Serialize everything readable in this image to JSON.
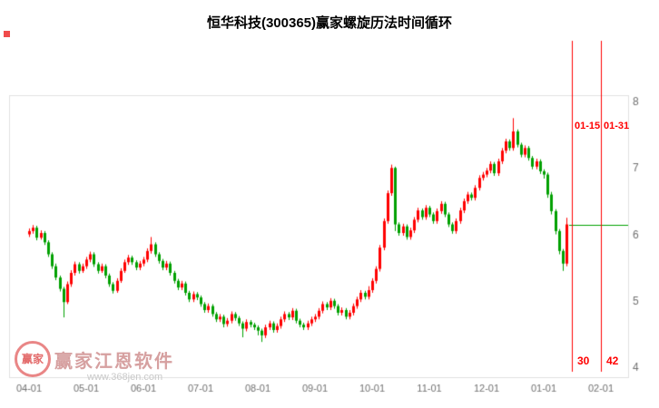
{
  "chart_data": {
    "type": "candlestick",
    "title": "恒华科技(300365)赢家螺旋历法时间循环",
    "x_labels": [
      "04-01",
      "05-01",
      "06-01",
      "07-01",
      "08-01",
      "09-01",
      "10-01",
      "11-01",
      "12-01",
      "01-01",
      "02-01"
    ],
    "ylim": [
      4,
      8
    ],
    "yticks": [
      8,
      7,
      6,
      5,
      4
    ],
    "up_color": "#ff0000",
    "down_color": "#00a000",
    "axis_text_color": "#707070",
    "cycle_line_color": "#ff0000",
    "hline": {
      "value": 6.15,
      "color": "#00a000"
    },
    "cycle_lines": [
      {
        "date": "01-15",
        "number": "30"
      },
      {
        "date": "01-31",
        "number": "42"
      }
    ],
    "candles": [
      [
        6.0,
        6.09,
        5.96,
        6.05
      ],
      [
        6.05,
        6.14,
        6.01,
        6.1
      ],
      [
        6.1,
        6.13,
        5.91,
        5.95
      ],
      [
        5.95,
        6.06,
        5.92,
        6.02
      ],
      [
        6.02,
        6.05,
        5.84,
        5.88
      ],
      [
        5.88,
        5.91,
        5.66,
        5.7
      ],
      [
        5.7,
        5.73,
        5.48,
        5.52
      ],
      [
        5.52,
        5.56,
        5.31,
        5.35
      ],
      [
        5.35,
        5.38,
        5.14,
        5.18
      ],
      [
        5.18,
        5.21,
        4.75,
        4.98
      ],
      [
        4.98,
        5.29,
        4.95,
        5.25
      ],
      [
        5.25,
        5.46,
        5.21,
        5.42
      ],
      [
        5.42,
        5.59,
        5.38,
        5.55
      ],
      [
        5.55,
        5.58,
        5.41,
        5.45
      ],
      [
        5.45,
        5.56,
        5.42,
        5.52
      ],
      [
        5.52,
        5.66,
        5.48,
        5.62
      ],
      [
        5.62,
        5.74,
        5.58,
        5.7
      ],
      [
        5.7,
        5.73,
        5.51,
        5.55
      ],
      [
        5.55,
        5.58,
        5.41,
        5.45
      ],
      [
        5.45,
        5.56,
        5.42,
        5.52
      ],
      [
        5.52,
        5.55,
        5.34,
        5.38
      ],
      [
        5.38,
        5.41,
        5.21,
        5.25
      ],
      [
        5.25,
        5.28,
        5.11,
        5.15
      ],
      [
        5.15,
        5.34,
        5.12,
        5.3
      ],
      [
        5.3,
        5.49,
        5.27,
        5.45
      ],
      [
        5.45,
        5.62,
        5.42,
        5.58
      ],
      [
        5.58,
        5.69,
        5.54,
        5.65
      ],
      [
        5.65,
        5.68,
        5.54,
        5.58
      ],
      [
        5.58,
        5.61,
        5.46,
        5.5
      ],
      [
        5.5,
        5.6,
        5.46,
        5.56
      ],
      [
        5.56,
        5.66,
        5.52,
        5.62
      ],
      [
        5.62,
        5.79,
        5.58,
        5.75
      ],
      [
        5.75,
        5.96,
        5.71,
        5.85
      ],
      [
        5.85,
        5.88,
        5.66,
        5.7
      ],
      [
        5.7,
        5.73,
        5.56,
        5.6
      ],
      [
        5.6,
        5.63,
        5.46,
        5.5
      ],
      [
        5.5,
        5.6,
        5.46,
        5.56
      ],
      [
        5.56,
        5.59,
        5.38,
        5.42
      ],
      [
        5.42,
        5.45,
        5.26,
        5.3
      ],
      [
        5.3,
        5.33,
        5.16,
        5.2
      ],
      [
        5.2,
        5.3,
        5.16,
        5.26
      ],
      [
        5.26,
        5.29,
        5.08,
        5.12
      ],
      [
        5.12,
        5.15,
        4.98,
        5.02
      ],
      [
        5.02,
        5.14,
        4.98,
        5.1
      ],
      [
        5.1,
        5.13,
        5.01,
        5.05
      ],
      [
        5.05,
        5.08,
        4.91,
        4.95
      ],
      [
        4.95,
        4.98,
        4.82,
        4.86
      ],
      [
        4.86,
        4.96,
        4.82,
        4.92
      ],
      [
        4.92,
        4.95,
        4.76,
        4.8
      ],
      [
        4.8,
        4.83,
        4.68,
        4.72
      ],
      [
        4.72,
        4.8,
        4.68,
        4.76
      ],
      [
        4.76,
        4.79,
        4.6,
        4.65
      ],
      [
        4.65,
        4.74,
        4.61,
        4.7
      ],
      [
        4.7,
        4.84,
        4.66,
        4.8
      ],
      [
        4.8,
        4.83,
        4.7,
        4.74
      ],
      [
        4.74,
        4.77,
        4.62,
        4.66
      ],
      [
        4.66,
        4.69,
        4.45,
        4.58
      ],
      [
        4.58,
        4.72,
        4.54,
        4.68
      ],
      [
        4.68,
        4.71,
        4.6,
        4.64
      ],
      [
        4.64,
        4.67,
        4.56,
        4.6
      ],
      [
        4.6,
        4.63,
        4.48,
        4.55
      ],
      [
        4.55,
        4.58,
        4.38,
        4.48
      ],
      [
        4.48,
        4.64,
        4.44,
        4.6
      ],
      [
        4.6,
        4.7,
        4.56,
        4.66
      ],
      [
        4.66,
        4.69,
        4.52,
        4.56
      ],
      [
        4.56,
        4.66,
        4.52,
        4.62
      ],
      [
        4.62,
        4.76,
        4.58,
        4.72
      ],
      [
        4.72,
        4.84,
        4.68,
        4.8
      ],
      [
        4.8,
        4.83,
        4.71,
        4.75
      ],
      [
        4.75,
        4.89,
        4.71,
        4.85
      ],
      [
        4.85,
        4.88,
        4.66,
        4.7
      ],
      [
        4.7,
        4.73,
        4.6,
        4.64
      ],
      [
        4.64,
        4.67,
        4.56,
        4.6
      ],
      [
        4.6,
        4.7,
        4.56,
        4.66
      ],
      [
        4.66,
        4.76,
        4.62,
        4.72
      ],
      [
        4.72,
        4.8,
        4.68,
        4.76
      ],
      [
        4.76,
        4.89,
        4.72,
        4.85
      ],
      [
        4.85,
        4.99,
        4.81,
        4.95
      ],
      [
        4.95,
        4.98,
        4.86,
        4.9
      ],
      [
        4.9,
        5.04,
        4.86,
        5.0
      ],
      [
        5.0,
        5.03,
        4.88,
        4.92
      ],
      [
        4.92,
        4.95,
        4.78,
        4.82
      ],
      [
        4.82,
        4.9,
        4.78,
        4.86
      ],
      [
        4.86,
        4.89,
        4.72,
        4.76
      ],
      [
        4.76,
        4.86,
        4.72,
        4.82
      ],
      [
        4.82,
        4.96,
        4.78,
        4.92
      ],
      [
        4.92,
        5.06,
        4.88,
        5.02
      ],
      [
        5.02,
        5.16,
        4.98,
        5.12
      ],
      [
        5.12,
        5.15,
        5.02,
        5.06
      ],
      [
        5.06,
        5.22,
        5.02,
        5.16
      ],
      [
        5.16,
        5.34,
        5.12,
        5.3
      ],
      [
        5.3,
        5.52,
        5.26,
        5.48
      ],
      [
        5.48,
        5.84,
        5.44,
        5.8
      ],
      [
        5.8,
        6.24,
        5.76,
        6.2
      ],
      [
        6.2,
        6.66,
        6.16,
        6.62
      ],
      [
        6.62,
        7.05,
        6.58,
        7.0
      ],
      [
        7.0,
        7.02,
        6.05,
        6.15
      ],
      [
        6.15,
        6.18,
        5.98,
        6.02
      ],
      [
        6.02,
        6.16,
        5.98,
        6.12
      ],
      [
        6.12,
        6.15,
        5.92,
        5.96
      ],
      [
        5.96,
        6.1,
        5.92,
        6.06
      ],
      [
        6.06,
        6.26,
        6.02,
        6.22
      ],
      [
        6.22,
        6.4,
        6.18,
        6.36
      ],
      [
        6.36,
        6.39,
        6.22,
        6.26
      ],
      [
        6.26,
        6.44,
        6.22,
        6.4
      ],
      [
        6.4,
        6.43,
        6.26,
        6.3
      ],
      [
        6.3,
        6.33,
        6.16,
        6.2
      ],
      [
        6.2,
        6.39,
        6.16,
        6.35
      ],
      [
        6.35,
        6.5,
        6.31,
        6.46
      ],
      [
        6.46,
        6.49,
        6.26,
        6.3
      ],
      [
        6.3,
        6.33,
        6.11,
        6.15
      ],
      [
        6.15,
        6.18,
        6.01,
        6.05
      ],
      [
        6.05,
        6.24,
        6.01,
        6.2
      ],
      [
        6.2,
        6.4,
        6.16,
        6.36
      ],
      [
        6.36,
        6.54,
        6.32,
        6.5
      ],
      [
        6.5,
        6.64,
        6.46,
        6.6
      ],
      [
        6.6,
        6.63,
        6.51,
        6.55
      ],
      [
        6.55,
        6.74,
        6.51,
        6.7
      ],
      [
        6.7,
        6.89,
        6.66,
        6.85
      ],
      [
        6.85,
        6.94,
        6.81,
        6.9
      ],
      [
        6.9,
        7.0,
        6.86,
        6.96
      ],
      [
        6.96,
        7.1,
        6.92,
        7.06
      ],
      [
        7.06,
        7.09,
        6.88,
        6.92
      ],
      [
        6.92,
        7.14,
        6.88,
        7.1
      ],
      [
        7.1,
        7.3,
        7.06,
        7.26
      ],
      [
        7.26,
        7.44,
        7.22,
        7.4
      ],
      [
        7.4,
        7.43,
        7.26,
        7.3
      ],
      [
        7.3,
        7.75,
        7.26,
        7.55
      ],
      [
        7.55,
        7.58,
        7.31,
        7.35
      ],
      [
        7.35,
        7.38,
        7.16,
        7.2
      ],
      [
        7.2,
        7.34,
        7.16,
        7.3
      ],
      [
        7.3,
        7.33,
        7.11,
        7.15
      ],
      [
        7.15,
        7.18,
        6.98,
        7.02
      ],
      [
        7.02,
        7.14,
        6.98,
        7.1
      ],
      [
        7.1,
        7.13,
        6.91,
        6.95
      ],
      [
        6.95,
        6.98,
        6.84,
        6.9
      ],
      [
        6.9,
        6.93,
        6.55,
        6.6
      ],
      [
        6.6,
        6.64,
        6.3,
        6.35
      ],
      [
        6.35,
        6.38,
        6.0,
        6.05
      ],
      [
        6.05,
        6.08,
        5.7,
        5.75
      ],
      [
        5.75,
        5.78,
        5.45,
        5.56
      ],
      [
        5.56,
        6.25,
        5.52,
        6.15
      ]
    ]
  },
  "watermark": {
    "logo_text": "赢家",
    "brand": "赢家江恩软件",
    "url": "www.368jen.com"
  }
}
